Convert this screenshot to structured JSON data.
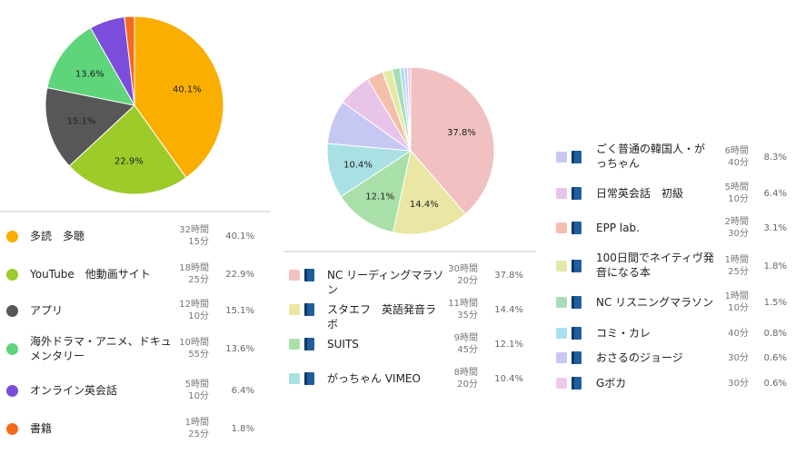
{
  "charts": [
    {
      "chart_data": {
        "type": "pie",
        "slices": [
          {
            "label": "多読　多聴",
            "time_h": "32時間",
            "time_m": "15分",
            "pct": "40.1%",
            "value": 40.1,
            "color": "#f9ae00"
          },
          {
            "label": "YouTube　他動画サイト",
            "time_h": "18時間",
            "time_m": "25分",
            "pct": "22.9%",
            "value": 22.9,
            "color": "#9ccb2a"
          },
          {
            "label": "アプリ",
            "time_h": "12時間",
            "time_m": "10分",
            "pct": "15.1%",
            "value": 15.1,
            "color": "#575757"
          },
          {
            "label": "海外ドラマ・アニメ、ドキュメンタリー",
            "time_h": "10時間",
            "time_m": "55分",
            "pct": "13.6%",
            "value": 13.6,
            "color": "#5ed57a"
          },
          {
            "label": "オンライン英会話",
            "time_h": "5時間",
            "time_m": "10分",
            "pct": "6.4%",
            "value": 6.4,
            "color": "#7c4ddb"
          },
          {
            "label": "書籍",
            "time_h": "1時間",
            "time_m": "25分",
            "pct": "1.8%",
            "value": 1.8,
            "color": "#f56a1f"
          }
        ],
        "start_angle_deg": 0
      }
    },
    {
      "chart_data": {
        "type": "pie",
        "slices": [
          {
            "label": "NC リーディングマラソン",
            "time_h": "30時間",
            "time_m": "20分",
            "pct": "37.8%",
            "value": 37.8,
            "color": "#f1c0c0"
          },
          {
            "label": "スタエフ　英語発音ラボ",
            "time_h": "11時間",
            "time_m": "35分",
            "pct": "14.4%",
            "value": 14.4,
            "color": "#eae6a3"
          },
          {
            "label": "SUITS",
            "time_h": "9時間",
            "time_m": "45分",
            "pct": "12.1%",
            "value": 12.1,
            "color": "#a9dfa9"
          },
          {
            "label": "がっちゃん VIMEO",
            "time_h": "8時間",
            "time_m": "20分",
            "pct": "10.4%",
            "value": 10.4,
            "color": "#a9e0e3"
          },
          {
            "label": "ごく普通の韓国人・がっちゃん",
            "time_h": "6時間",
            "time_m": "40分",
            "pct": "8.3%",
            "value": 8.3,
            "color": "#c7c7f3"
          },
          {
            "label": "日常英会話　初級",
            "time_h": "5時間",
            "time_m": "10分",
            "pct": "6.4%",
            "value": 6.4,
            "color": "#e9c4ea"
          },
          {
            "label": "EPP lab.",
            "time_h": "2時間",
            "time_m": "30分",
            "pct": "3.1%",
            "value": 3.1,
            "color": "#f3bfaa"
          },
          {
            "label": "100日間でネイティヴ発音になる本",
            "time_h": "1時間",
            "time_m": "25分",
            "pct": "1.8%",
            "value": 1.8,
            "color": "#e2eaa6"
          },
          {
            "label": "NC リスニングマラソン",
            "time_h": "1時間",
            "time_m": "10分",
            "pct": "1.5%",
            "value": 1.5,
            "color": "#a9dcb8"
          },
          {
            "label": "コミ・カレ",
            "time_h": "",
            "time_m": "40分",
            "pct": "0.8%",
            "value": 0.8,
            "color": "#a9dff0"
          },
          {
            "label": "おさるのジョージ",
            "time_h": "",
            "time_m": "30分",
            "pct": "0.6%",
            "value": 0.6,
            "color": "#c7c8f3"
          },
          {
            "label": "Gボカ",
            "time_h": "",
            "time_m": "30分",
            "pct": "0.6%",
            "value": 0.6,
            "color": "#f0c6ea"
          }
        ],
        "start_angle_deg": 0
      }
    }
  ]
}
